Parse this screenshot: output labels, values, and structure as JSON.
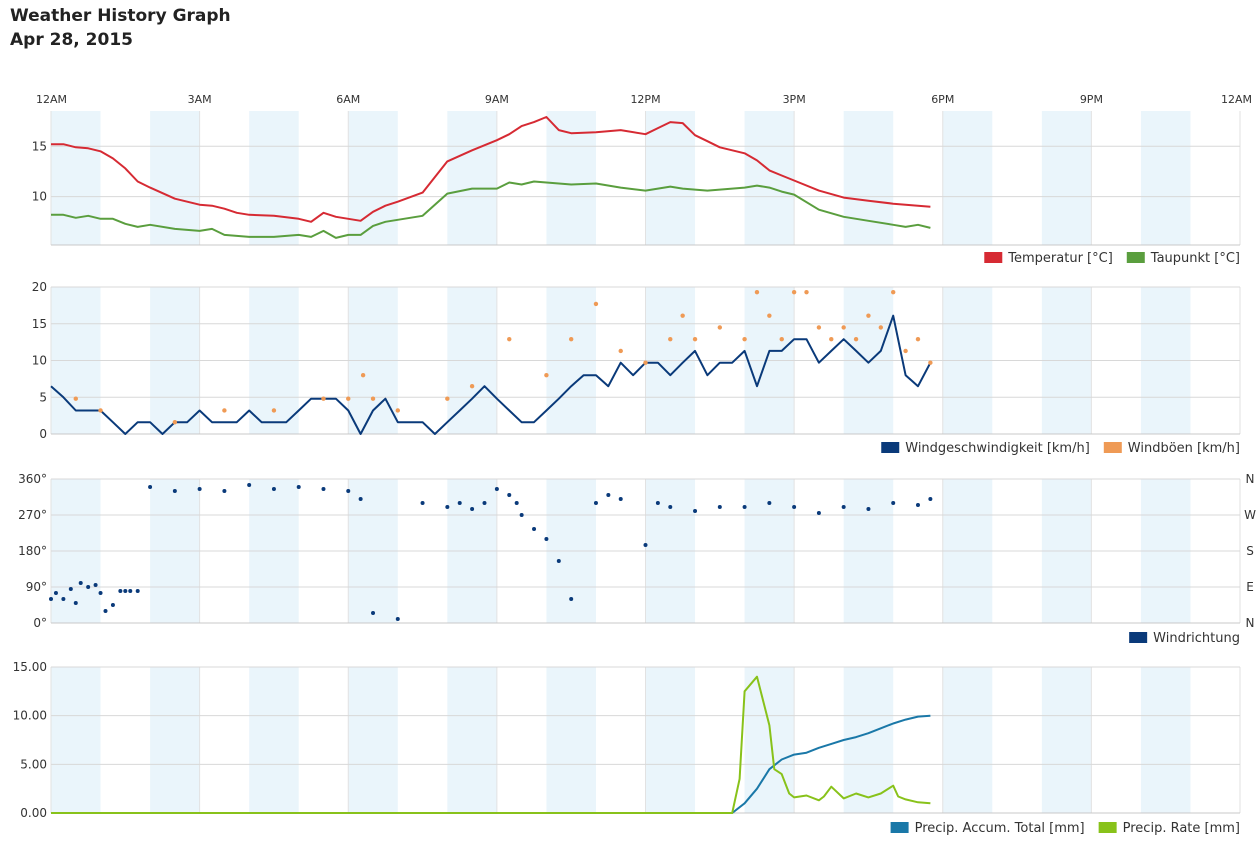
{
  "header": {
    "title": "Weather History Graph",
    "date": "Apr 28, 2015"
  },
  "time_axis": {
    "hours": [
      0,
      3,
      6,
      9,
      12,
      15,
      18,
      21,
      24
    ],
    "labels": [
      "12AM",
      "3AM",
      "6AM",
      "9AM",
      "12PM",
      "3PM",
      "6PM",
      "9PM",
      "12AM"
    ],
    "x_range_hours": [
      0,
      24
    ],
    "shaded_bands_hours": [
      [
        0,
        1
      ],
      [
        2,
        3
      ],
      [
        4,
        5
      ],
      [
        6,
        7
      ],
      [
        8,
        9
      ],
      [
        10,
        11
      ],
      [
        12,
        13
      ],
      [
        14,
        15
      ],
      [
        16,
        17
      ],
      [
        18,
        19
      ],
      [
        20,
        21
      ],
      [
        22,
        23
      ]
    ]
  },
  "colors": {
    "temperature": "#d62a33",
    "dewpoint": "#5a9e3e",
    "wind_speed": "#0a3a7a",
    "wind_gust": "#ef9a55",
    "wind_dir": "#0a3a7a",
    "precip_accum": "#1a78a8",
    "precip_rate": "#88c21a",
    "band": "#eaf5fb",
    "grid": "#d8d8d8"
  },
  "chart_data": [
    {
      "type": "line",
      "y_ticks": [
        "15",
        "10"
      ],
      "y_tick_values": [
        15,
        10
      ],
      "ylim": [
        5.2,
        18.5
      ],
      "legend_position": "bottom-right",
      "series": [
        {
          "name": "Temperatur [°C]",
          "x": [
            0,
            0.25,
            0.5,
            0.75,
            1,
            1.25,
            1.5,
            1.75,
            2,
            2.5,
            3,
            3.25,
            3.5,
            3.75,
            4,
            4.5,
            5,
            5.25,
            5.5,
            5.75,
            6,
            6.25,
            6.5,
            6.75,
            7,
            7.5,
            8,
            8.5,
            9,
            9.25,
            9.5,
            9.75,
            10,
            10.25,
            10.5,
            11,
            11.5,
            12,
            12.25,
            12.5,
            12.75,
            13,
            13.25,
            13.5,
            14,
            14.25,
            14.5,
            14.75,
            15,
            15.5,
            16,
            16.5,
            17,
            17.25,
            17.5,
            17.75
          ],
          "values": [
            15.2,
            15.2,
            14.9,
            14.8,
            14.5,
            13.8,
            12.8,
            11.5,
            10.9,
            9.8,
            9.2,
            9.1,
            8.8,
            8.4,
            8.2,
            8.1,
            7.8,
            7.5,
            8.4,
            8.0,
            7.8,
            7.6,
            8.5,
            9.1,
            9.5,
            10.4,
            13.5,
            14.6,
            15.6,
            16.2,
            17.0,
            17.4,
            17.9,
            16.6,
            16.3,
            16.4,
            16.6,
            16.2,
            16.8,
            17.4,
            17.3,
            16.1,
            15.5,
            14.9,
            14.3,
            13.6,
            12.6,
            12.1,
            11.6,
            10.6,
            9.9,
            9.6,
            9.3,
            9.2,
            9.1,
            9.0
          ]
        },
        {
          "name": "Taupunkt [°C]",
          "x": [
            0,
            0.25,
            0.5,
            0.75,
            1,
            1.25,
            1.5,
            1.75,
            2,
            2.5,
            3,
            3.25,
            3.5,
            3.75,
            4,
            4.5,
            5,
            5.25,
            5.5,
            5.75,
            6,
            6.25,
            6.5,
            6.75,
            7,
            7.5,
            8,
            8.5,
            9,
            9.25,
            9.5,
            9.75,
            10,
            10.25,
            10.5,
            11,
            11.5,
            12,
            12.25,
            12.5,
            12.75,
            13,
            13.25,
            13.5,
            14,
            14.25,
            14.5,
            14.75,
            15,
            15.5,
            16,
            16.5,
            17,
            17.25,
            17.5,
            17.75
          ],
          "values": [
            8.2,
            8.2,
            7.9,
            8.1,
            7.8,
            7.8,
            7.3,
            7.0,
            7.2,
            6.8,
            6.6,
            6.8,
            6.2,
            6.1,
            6.0,
            6.0,
            6.2,
            6.0,
            6.6,
            5.9,
            6.2,
            6.2,
            7.1,
            7.5,
            7.7,
            8.1,
            10.3,
            10.8,
            10.8,
            11.4,
            11.2,
            11.5,
            11.4,
            11.3,
            11.2,
            11.3,
            10.9,
            10.6,
            10.8,
            11.0,
            10.8,
            10.7,
            10.6,
            10.7,
            10.9,
            11.1,
            10.9,
            10.5,
            10.2,
            8.7,
            8.0,
            7.6,
            7.2,
            7.0,
            7.2,
            6.9
          ]
        }
      ]
    },
    {
      "type": "line",
      "y_ticks": [
        "20",
        "15",
        "10",
        "5",
        "0"
      ],
      "y_tick_values": [
        20,
        15,
        10,
        5,
        0
      ],
      "ylim": [
        0,
        20
      ],
      "legend_position": "bottom-right",
      "series": [
        {
          "name": "Windgeschwindigkeit [km/h]",
          "x": [
            0,
            0.25,
            0.5,
            0.75,
            1,
            1.25,
            1.5,
            1.75,
            2,
            2.25,
            2.5,
            2.75,
            3,
            3.25,
            3.5,
            3.75,
            4,
            4.25,
            4.5,
            4.75,
            5,
            5.25,
            5.5,
            5.75,
            6,
            6.25,
            6.5,
            6.75,
            7,
            7.25,
            7.5,
            7.75,
            8,
            8.25,
            8.5,
            8.75,
            9,
            9.25,
            9.5,
            9.75,
            10,
            10.25,
            10.5,
            10.75,
            11,
            11.25,
            11.5,
            11.75,
            12,
            12.25,
            12.5,
            12.75,
            13,
            13.25,
            13.5,
            13.75,
            14,
            14.25,
            14.5,
            14.75,
            15,
            15.25,
            15.5,
            15.75,
            16,
            16.25,
            16.5,
            16.75,
            17,
            17.25,
            17.5,
            17.75
          ],
          "values": [
            6.5,
            5.0,
            3.2,
            3.2,
            3.2,
            1.6,
            0,
            1.6,
            1.6,
            0,
            1.6,
            1.6,
            3.2,
            1.6,
            1.6,
            1.6,
            3.2,
            1.6,
            1.6,
            1.6,
            3.2,
            4.8,
            4.8,
            4.8,
            3.2,
            0,
            3.2,
            4.8,
            1.6,
            1.6,
            1.6,
            0,
            1.6,
            3.2,
            4.8,
            6.5,
            4.8,
            3.2,
            1.6,
            1.6,
            3.2,
            4.8,
            6.5,
            8.0,
            8.0,
            6.5,
            9.7,
            8.0,
            9.7,
            9.7,
            8.0,
            9.7,
            11.3,
            8.0,
            9.7,
            9.7,
            11.3,
            6.5,
            11.3,
            11.3,
            12.9,
            12.9,
            9.7,
            11.3,
            12.9,
            11.3,
            9.7,
            11.3,
            16.1,
            8.0,
            6.5,
            9.7
          ]
        },
        {
          "name": "Windböen [km/h]",
          "x": [
            0.5,
            1,
            2.5,
            3.5,
            4.5,
            5.5,
            6,
            6.3,
            6.5,
            7,
            8,
            8.5,
            9.25,
            10,
            10.5,
            11,
            11.5,
            12,
            12.5,
            12.75,
            13,
            13.5,
            14,
            14.25,
            14.5,
            14.75,
            15,
            15.25,
            15.5,
            15.75,
            16,
            16.25,
            16.5,
            16.75,
            17,
            17.25,
            17.5,
            17.75
          ],
          "values": [
            4.8,
            3.2,
            1.6,
            3.2,
            3.2,
            4.8,
            4.8,
            8.0,
            4.8,
            3.2,
            4.8,
            6.5,
            12.9,
            8.0,
            12.9,
            17.7,
            11.3,
            9.7,
            12.9,
            16.1,
            12.9,
            14.5,
            12.9,
            19.3,
            16.1,
            12.9,
            19.3,
            19.3,
            14.5,
            12.9,
            14.5,
            12.9,
            16.1,
            14.5,
            19.3,
            11.3,
            12.9,
            9.7
          ]
        }
      ]
    },
    {
      "type": "scatter",
      "y_ticks": [
        "360°",
        "270°",
        "180°",
        "90°",
        "0°"
      ],
      "y_tick_values": [
        360,
        270,
        180,
        90,
        0
      ],
      "right_ticks": [
        "N",
        "W",
        "S",
        "E",
        "N"
      ],
      "ylim": [
        0,
        360
      ],
      "legend_position": "bottom-right",
      "series": [
        {
          "name": "Windrichtung",
          "x": [
            0,
            0.1,
            0.25,
            0.4,
            0.5,
            0.6,
            0.75,
            0.9,
            1,
            1.1,
            1.25,
            1.4,
            1.5,
            1.6,
            1.75,
            2,
            2.5,
            3,
            3.5,
            4,
            4.5,
            5,
            5.5,
            6,
            6.25,
            6.5,
            7,
            7.5,
            8,
            8.25,
            8.5,
            8.75,
            9,
            9.25,
            9.4,
            9.5,
            9.75,
            10,
            10.25,
            10.5,
            11,
            11.25,
            11.5,
            12,
            12.25,
            12.5,
            13,
            13.5,
            14,
            14.5,
            15,
            15.5,
            16,
            16.5,
            17,
            17.5,
            17.75
          ],
          "values": [
            60,
            75,
            60,
            85,
            50,
            100,
            90,
            95,
            75,
            30,
            45,
            80,
            80,
            80,
            80,
            340,
            330,
            335,
            330,
            345,
            335,
            340,
            335,
            330,
            310,
            25,
            10,
            300,
            290,
            300,
            285,
            300,
            335,
            320,
            300,
            270,
            235,
            210,
            155,
            60,
            300,
            320,
            310,
            195,
            300,
            290,
            280,
            290,
            290,
            300,
            290,
            275,
            290,
            285,
            300,
            295,
            310
          ]
        }
      ]
    },
    {
      "type": "line",
      "y_ticks": [
        "15.00",
        "10.00",
        "5.00",
        "0.00"
      ],
      "y_tick_values": [
        15,
        10,
        5,
        0
      ],
      "ylim": [
        0,
        15
      ],
      "legend_position": "bottom-right",
      "series": [
        {
          "name": "Precip. Accum. Total [mm]",
          "x": [
            0,
            13.75,
            14,
            14.25,
            14.5,
            14.75,
            15,
            15.25,
            15.5,
            15.75,
            16,
            16.25,
            16.5,
            16.75,
            17,
            17.25,
            17.5,
            17.75
          ],
          "values": [
            0,
            0,
            1.0,
            2.5,
            4.5,
            5.5,
            6.0,
            6.2,
            6.7,
            7.1,
            7.5,
            7.8,
            8.2,
            8.7,
            9.2,
            9.6,
            9.9,
            10.0
          ]
        },
        {
          "name": "Precip. Rate [mm]",
          "x": [
            0,
            13.75,
            13.9,
            14,
            14.25,
            14.5,
            14.6,
            14.75,
            14.9,
            15,
            15.25,
            15.5,
            15.6,
            15.75,
            16,
            16.25,
            16.5,
            16.75,
            17,
            17.1,
            17.25,
            17.5,
            17.75
          ],
          "values": [
            0,
            0,
            3.5,
            12.5,
            14.0,
            9.0,
            4.5,
            4.0,
            2.0,
            1.6,
            1.8,
            1.3,
            1.7,
            2.7,
            1.5,
            2.0,
            1.6,
            2.0,
            2.8,
            1.7,
            1.4,
            1.1,
            1.0
          ]
        }
      ]
    }
  ]
}
